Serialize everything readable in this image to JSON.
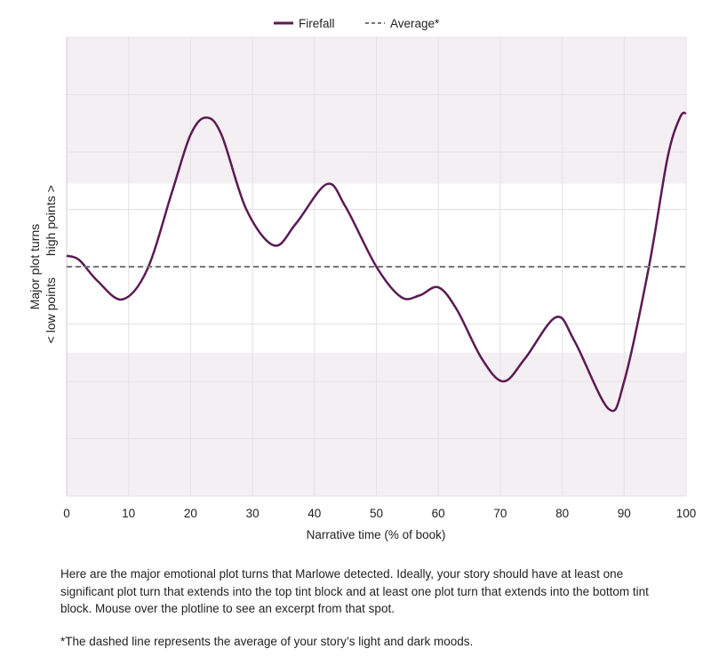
{
  "chart_data": {
    "type": "line",
    "xlabel": "Narrative time (% of book)",
    "ylabel": "Major plot turns",
    "ylabel_low": "< low points",
    "ylabel_high": "high points >",
    "xlim": [
      0,
      100
    ],
    "ylim": [
      -4,
      4
    ],
    "x_ticks": [
      "0",
      "10",
      "20",
      "30",
      "40",
      "50",
      "60",
      "70",
      "80",
      "90",
      "100"
    ],
    "grid": true,
    "legend_position": "top-center",
    "tint_blocks": [
      [
        1.45,
        4
      ],
      [
        -4,
        -1.5
      ]
    ],
    "series": [
      {
        "name": "Firefall",
        "color": "#5b1a52",
        "style": "solid",
        "x": [
          0,
          2,
          5,
          9,
          13,
          17,
          20,
          22.5,
          25,
          29,
          33.5,
          37,
          42,
          45,
          50,
          54,
          57,
          60,
          63,
          67,
          70.5,
          74,
          79,
          82,
          87.5,
          90,
          94,
          97,
          99,
          100
        ],
        "y": [
          0.19,
          0.12,
          -0.25,
          -0.57,
          -0.05,
          1.3,
          2.3,
          2.6,
          2.3,
          1.0,
          0.37,
          0.75,
          1.44,
          1.05,
          0.0,
          -0.53,
          -0.5,
          -0.36,
          -0.75,
          -1.6,
          -2.0,
          -1.6,
          -0.88,
          -1.3,
          -2.48,
          -2.0,
          0.0,
          1.9,
          2.6,
          2.68
        ]
      },
      {
        "name": "Average*",
        "color": "#777777",
        "style": "dashed",
        "x": [
          0,
          100
        ],
        "y": [
          0,
          0
        ]
      }
    ]
  },
  "caption": {
    "paragraph1": "Here are the major emotional plot turns that Marlowe detected. Ideally, your story should have at least one significant plot turn that extends into the top tint block and at least one plot turn that extends into the bottom tint block. Mouse over the plotline to see an excerpt from that spot.",
    "paragraph2": "*The dashed line represents the average of your story’s light and dark moods."
  }
}
